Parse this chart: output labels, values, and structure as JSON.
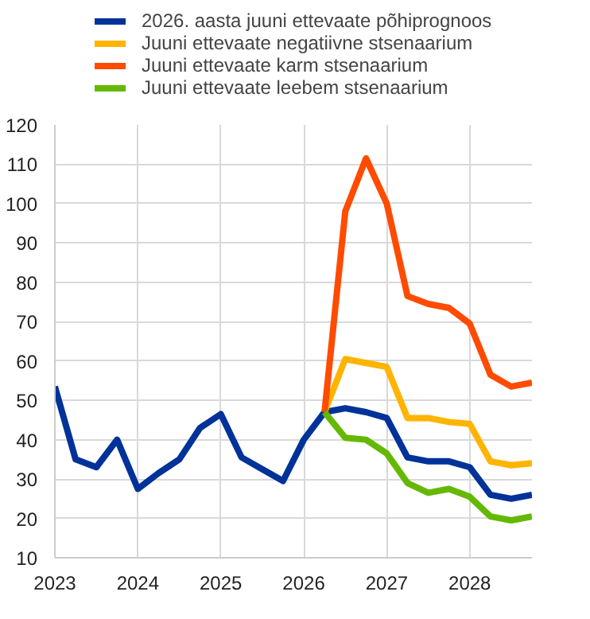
{
  "chart_data": {
    "type": "line",
    "xlim": [
      2023,
      2028.75
    ],
    "xticks": [
      2023,
      2024,
      2025,
      2026,
      2027,
      2028
    ],
    "ylim": [
      10,
      120
    ],
    "yticks": [
      10,
      20,
      30,
      40,
      50,
      60,
      70,
      80,
      90,
      100,
      110,
      120
    ],
    "grid": true,
    "legend": "top",
    "line_style": "solid",
    "series": [
      {
        "name": "2026. aasta juuni ettevaate põhiprognoos",
        "color": "#003299",
        "x": [
          2023,
          2023.25,
          2023.5,
          2023.75,
          2024,
          2024.25,
          2024.5,
          2024.75,
          2025,
          2025.25,
          2025.5,
          2025.75,
          2026,
          2026.25,
          2026.5,
          2026.75,
          2027,
          2027.25,
          2027.5,
          2027.75,
          2028,
          2028.25,
          2028.5,
          2028.75
        ],
        "values": [
          53.5,
          35,
          33,
          40,
          27.5,
          31.5,
          35,
          43,
          46.5,
          35.5,
          32.5,
          29.5,
          40,
          47,
          48,
          47,
          45.5,
          35.5,
          34.5,
          34.5,
          33,
          26,
          25,
          26
        ]
      },
      {
        "name": "Juuni ettevaate negatiivne stsenaarium",
        "color": "#ffb400",
        "x": [
          2026.25,
          2026.5,
          2026.75,
          2027,
          2027.25,
          2027.5,
          2027.75,
          2028,
          2028.25,
          2028.5,
          2028.75
        ],
        "values": [
          47,
          60.5,
          59.5,
          58.5,
          45.5,
          45.5,
          44.5,
          44,
          34.5,
          33.5,
          34
        ]
      },
      {
        "name": "Juuni ettevaate karm stsenaarium",
        "color": "#ff4b00",
        "x": [
          2026.25,
          2026.5,
          2026.75,
          2027,
          2027.25,
          2027.5,
          2027.75,
          2028,
          2028.25,
          2028.5,
          2028.75
        ],
        "values": [
          47,
          98,
          111.5,
          100,
          76.5,
          74.5,
          73.5,
          69.5,
          56.5,
          53.5,
          54.5
        ]
      },
      {
        "name": "Juuni ettevaate leebem stsenaarium",
        "color": "#65b800",
        "x": [
          2026.25,
          2026.5,
          2026.75,
          2027,
          2027.25,
          2027.5,
          2027.75,
          2028,
          2028.25,
          2028.5,
          2028.75
        ],
        "values": [
          47,
          40.5,
          40,
          36.5,
          29,
          26.5,
          27.5,
          25.5,
          20.5,
          19.5,
          20.5
        ]
      }
    ]
  }
}
